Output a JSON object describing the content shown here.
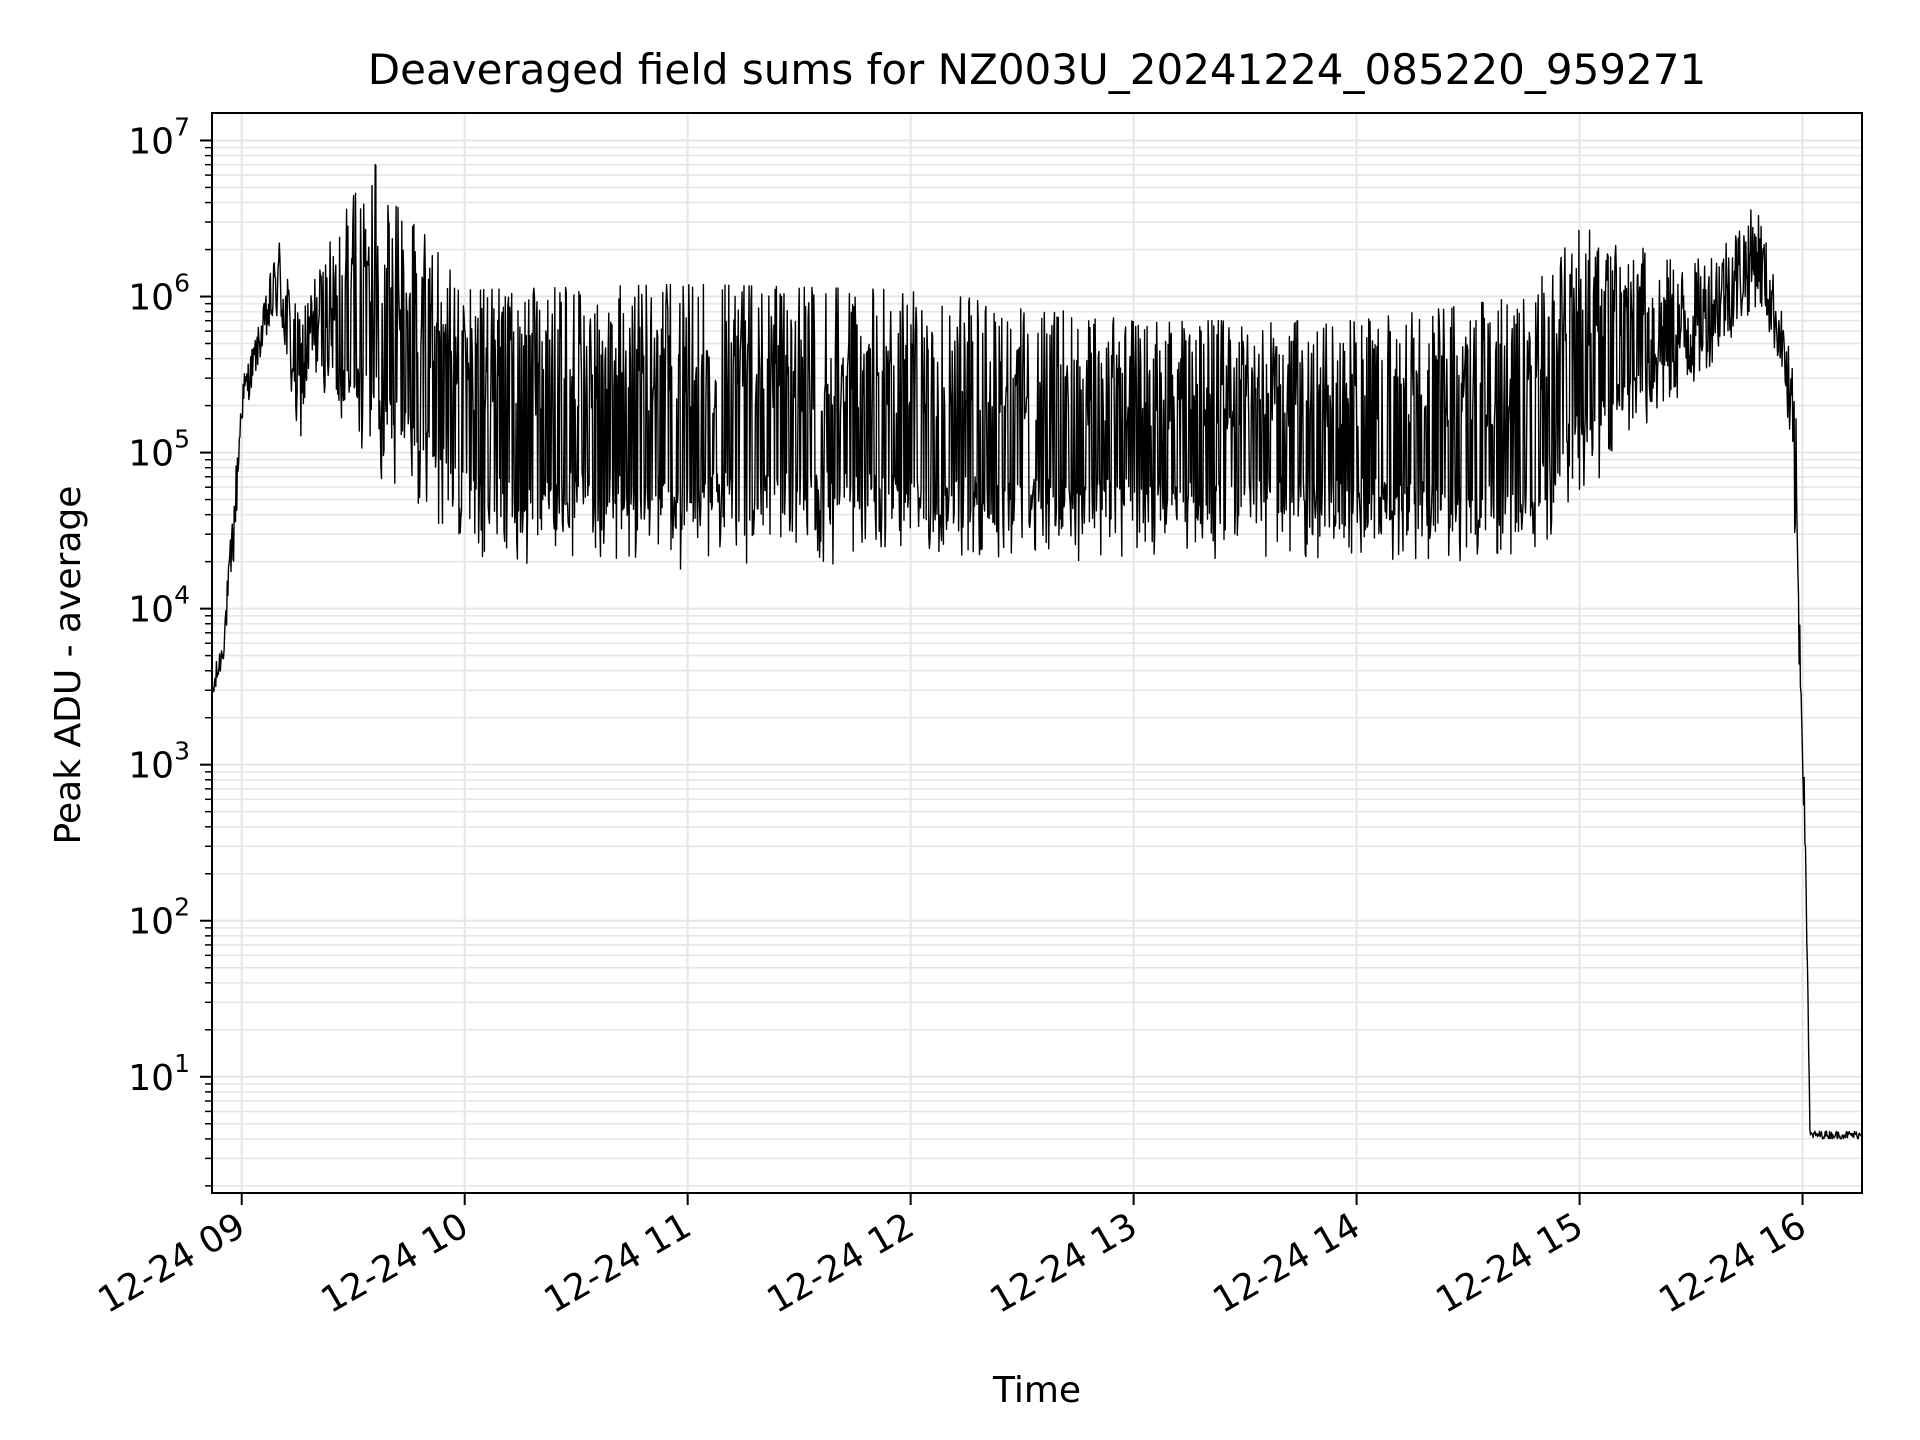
{
  "chart_data": {
    "type": "line",
    "title": "Deaveraged field sums for NZ003U_20241224_085220_959271",
    "xlabel": "Time",
    "ylabel": "Peak ADU - average",
    "yscale": "log",
    "ylim": [
      1.8,
      15000000
    ],
    "xlim": [
      "2024-12-24 08:52",
      "2024-12-24 16:16"
    ],
    "grid": true,
    "x_ticks": [
      {
        "value": "2024-12-24 09:00",
        "label": "12-24 09"
      },
      {
        "value": "2024-12-24 10:00",
        "label": "12-24 10"
      },
      {
        "value": "2024-12-24 11:00",
        "label": "12-24 11"
      },
      {
        "value": "2024-12-24 12:00",
        "label": "12-24 12"
      },
      {
        "value": "2024-12-24 13:00",
        "label": "12-24 13"
      },
      {
        "value": "2024-12-24 14:00",
        "label": "12-24 14"
      },
      {
        "value": "2024-12-24 15:00",
        "label": "12-24 15"
      },
      {
        "value": "2024-12-24 16:00",
        "label": "12-24 16"
      }
    ],
    "y_ticks": [
      {
        "value": 10,
        "base": "10",
        "exp": "1"
      },
      {
        "value": 100,
        "base": "10",
        "exp": "2"
      },
      {
        "value": 1000,
        "base": "10",
        "exp": "3"
      },
      {
        "value": 10000,
        "base": "10",
        "exp": "4"
      },
      {
        "value": 100000,
        "base": "10",
        "exp": "5"
      },
      {
        "value": 1000000,
        "base": "10",
        "exp": "6"
      },
      {
        "value": 10000000,
        "base": "10",
        "exp": "7"
      }
    ],
    "series": [
      {
        "color": "#000000",
        "description": "Dense noisy trace: rises from ~3e3 to ~1e6 by 09:10, oscillates between ~2e4 and ~1.2e6 through 15:45 (spikes to 7.5e6 near 09:35 and 4e6 near 15:48), then drops to ~4 after 16:00.",
        "envelope": [
          {
            "x": "2024-12-24 08:52",
            "low": 2200,
            "high": 3500
          },
          {
            "x": "2024-12-24 08:55",
            "low": 4500,
            "high": 7000
          },
          {
            "x": "2024-12-24 08:58",
            "low": 20000,
            "high": 60000
          },
          {
            "x": "2024-12-24 09:00",
            "low": 150000,
            "high": 300000
          },
          {
            "x": "2024-12-24 09:05",
            "low": 400000,
            "high": 700000
          },
          {
            "x": "2024-12-24 09:10",
            "low": 700000,
            "high": 2600000
          },
          {
            "x": "2024-12-24 09:15",
            "low": 100000,
            "high": 800000
          },
          {
            "x": "2024-12-24 09:20",
            "low": 300000,
            "high": 1500000
          },
          {
            "x": "2024-12-24 09:35",
            "low": 70000,
            "high": 7500000
          },
          {
            "x": "2024-12-24 10:00",
            "low": 18000,
            "high": 1100000
          },
          {
            "x": "2024-12-24 11:00",
            "low": 17000,
            "high": 1200000
          },
          {
            "x": "2024-12-24 12:00",
            "low": 18000,
            "high": 1100000
          },
          {
            "x": "2024-12-24 13:00",
            "low": 20000,
            "high": 700000
          },
          {
            "x": "2024-12-24 14:00",
            "low": 20000,
            "high": 700000
          },
          {
            "x": "2024-12-24 14:45",
            "low": 14000,
            "high": 1000000
          },
          {
            "x": "2024-12-24 15:00",
            "low": 50000,
            "high": 2800000
          },
          {
            "x": "2024-12-24 15:30",
            "low": 250000,
            "high": 1600000
          },
          {
            "x": "2024-12-24 15:48",
            "low": 900000,
            "high": 4000000
          },
          {
            "x": "2024-12-24 15:55",
            "low": 300000,
            "high": 700000
          },
          {
            "x": "2024-12-24 15:58",
            "low": 20000,
            "high": 300000
          },
          {
            "x": "2024-12-24 16:00",
            "low": 1000,
            "high": 2000
          },
          {
            "x": "2024-12-24 16:01",
            "low": 100,
            "high": 300
          },
          {
            "x": "2024-12-24 16:02",
            "low": 4,
            "high": 4.5
          },
          {
            "x": "2024-12-24 16:16",
            "low": 4,
            "high": 4.5
          }
        ]
      }
    ]
  }
}
